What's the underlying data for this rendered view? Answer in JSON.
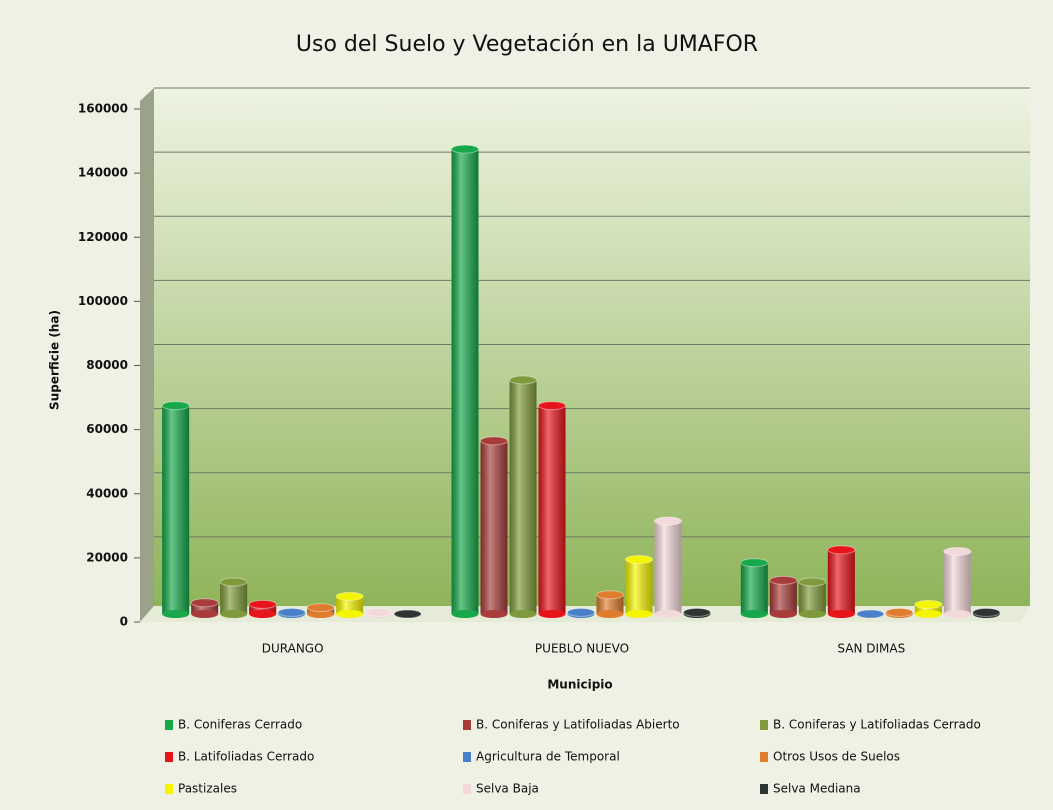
{
  "chart_data": {
    "type": "bar",
    "title": "Uso del  Suelo y Vegetación en la UMAFOR",
    "x_label": "Municipio",
    "y_label": "Superficie (ha)",
    "categories": [
      "DURANGO",
      "PUEBLO NUEVO",
      "SAN DIMAS"
    ],
    "series": [
      {
        "name": "B. Coniferas Cerrado",
        "color": "#16a84a",
        "values": [
          65000,
          145000,
          16000
        ]
      },
      {
        "name": "B. Coniferas y Latifoliadas Abierto",
        "color": "#a83c3a",
        "values": [
          3500,
          54000,
          10500
        ]
      },
      {
        "name": "B. Coniferas y Latifoliadas Cerrado",
        "color": "#7f9a3a",
        "values": [
          10000,
          73000,
          10000
        ]
      },
      {
        "name": "B. Latifoliadas Cerrado",
        "color": "#e8141b",
        "values": [
          3000,
          65000,
          20000
        ]
      },
      {
        "name": "Agricultura de Temporal",
        "color": "#4a80c9",
        "values": [
          500,
          500,
          0
        ]
      },
      {
        "name": "Otros Usos de Suelos",
        "color": "#e07c2e",
        "values": [
          2000,
          6000,
          500
        ]
      },
      {
        "name": "Pastizales",
        "color": "#f5f500",
        "values": [
          5500,
          17000,
          3000
        ]
      },
      {
        "name": "Selva Baja",
        "color": "#f3d9da",
        "values": [
          500,
          29000,
          19500
        ]
      },
      {
        "name": "Selva Mediana",
        "color": "#2f3533",
        "values": [
          0,
          500,
          500
        ]
      }
    ],
    "ylim": [
      0,
      160000
    ],
    "yticks": [
      0,
      20000,
      40000,
      60000,
      80000,
      100000,
      120000,
      140000,
      160000
    ],
    "grid": true
  }
}
